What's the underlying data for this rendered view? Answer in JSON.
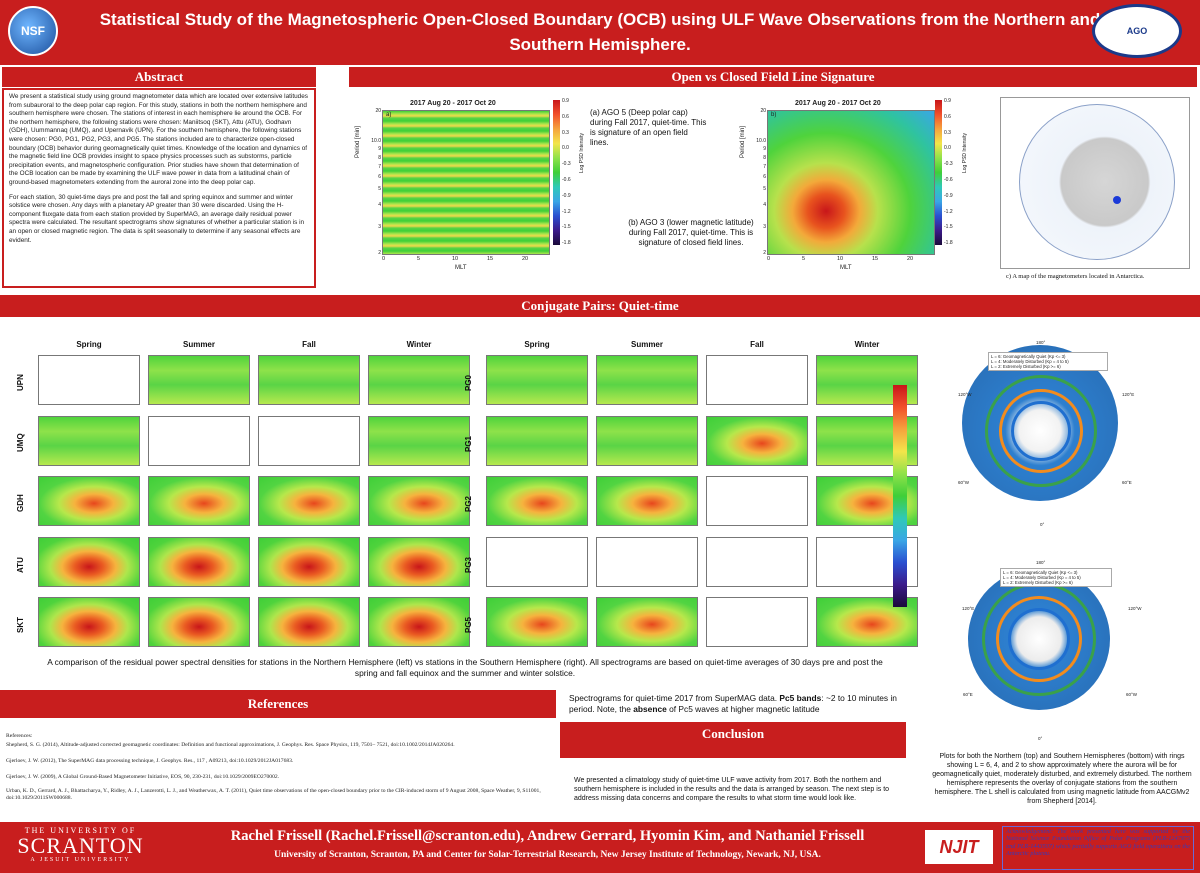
{
  "header": {
    "title": "Statistical Study of the Magnetospheric Open-Closed Boundary (OCB) using ULF Wave Observations from the Northern and Southern Hemisphere.",
    "nsf_logo": "NSF",
    "ago_logo": "AGO"
  },
  "abstract": {
    "heading": "Abstract",
    "p1": "We present a statistical study using ground magnetometer data which are located over extensive latitudes from subauroral to the deep polar cap region.  For this study, stations in both the northern hemisphere and southern hemisphere were chosen. The stations of interest in each hemisphere lie around the OCB. For the northern hemisphere, the following stations were chosen: Maniitsoq (SKT), Attu (ATU), Godhavn (GDH), Uummannaq (UMQ), and Upernavik (UPN). For the southern hemisphere, the following stations were chosen: PG0, PG1, PG2, PG3, and PG5. The stations included are to characterize open-closed boundary (OCB) behavior during geomagnetically quiet times. Knowledge of the location and dynamics of the magnetic field line OCB provides insight to space physics processes such as substorms, particle precipitation events, and magnetospheric configuration. Prior studies have shown that determination of the OCB location can be made by examining the ULF wave power in data from a latitudinal chain of ground-based magnetometers extending from the auroral zone into the deep polar cap.",
    "p2": "For each station, 30 quiet-time days pre and post the fall and spring equinox and summer and winter solstice were chosen. Any days with a planetary AP greater than 30 were discarded. Using the H- component fluxgate data from each station provided by SuperMAG, an average daily residual power spectra were calculated. The resultant spectrograms show signatures of whether a particular station is in an open or closed magnetic region. The data is split seasonally to determine if any seasonal effects are evident."
  },
  "signature": {
    "heading": "Open vs Closed Field Line Signature",
    "plot_a": {
      "title": "2017 Aug 20 - 2017 Oct 20",
      "panel": "a)",
      "xlabel": "MLT",
      "ylabel": "Period [min]",
      "cbar_label": "Log PSD Intensity"
    },
    "plot_b": {
      "title": "2017 Aug 20 - 2017 Oct 20",
      "panel": "b)",
      "xlabel": "MLT",
      "ylabel": "Period [min]",
      "cbar_label": "Log PSD Intensity"
    },
    "cbar_ticks": [
      "0.9",
      "0.6",
      "0.3",
      "0.0",
      "-0.3",
      "-0.6",
      "-0.9",
      "-1.2",
      "-1.5",
      "-1.8"
    ],
    "cbar_ticks_b": [
      "0.9",
      "0.6",
      "0.3",
      "0.0",
      "-0.3",
      "-0.6",
      "-0.9",
      "-1.2",
      "-1.5",
      "-1.8"
    ],
    "yticks": [
      "20",
      "10.0",
      "9",
      "8",
      "7",
      "6",
      "5",
      "4",
      "3",
      "2"
    ],
    "xticks": [
      "0",
      "5",
      "10",
      "15",
      "20"
    ],
    "note_a": "(a) AGO 5 (Deep polar cap) during Fall 2017, quiet-time. This is signature of an open field lines.",
    "note_b": "(b) AGO 3 (lower magnetic latitude) during Fall 2017, quiet-time. This is signature of closed field lines.",
    "map_caption": "c) A map of the magnetometers located in Antarctica."
  },
  "conjugate": {
    "heading": "Conjugate Pairs: Quiet-time",
    "seasons": [
      "Spring",
      "Summer",
      "Fall",
      "Winter"
    ],
    "north_stations": [
      "UPN",
      "UMQ",
      "GDH",
      "ATU",
      "SKT"
    ],
    "south_stations": [
      "PG0",
      "PG1",
      "PG2",
      "PG3",
      "PG5"
    ],
    "caption": "A comparison of the residual power spectral densities for stations in the Northern Hemisphere (left) vs stations in the Southern Hemisphere (right). All spectrograms are based on quiet-time averages of 30 days pre and post the spring and fall equinox and the summer and winter solstice.",
    "maps_caption": "Plots for both the Northern (top) and Southern Hemispheres (bottom) with rings showing L = 6, 4, and 2 to show approximately where the aurora will be for geomagnetically quiet, moderately disturbed, and extremely disturbed. The northern hemisphere represents the overlay of conjugate stations from the southern hemisphere. The L shell is calculated from using magnetic latitude from AACGMv2 from Shepherd [2014].",
    "map_north_legend": [
      "L = 6: Geomagnetically Quiet (Kp <= 3)",
      "L = 4: Moderately Disturbed (Kp = 4 to 5)",
      "L = 2: Extremely Disturbed (Kp >= 6)"
    ],
    "map_south_legend": [
      "L = 6: Geomagnetically Quiet (Kp <= 3)",
      "L = 4: Moderately Disturbed (Kp = 4 to 5)",
      "L = 2: Extremely Disturbed (Kp >= 6)"
    ],
    "map_labels_north": {
      "top": "180°",
      "left": "120°W",
      "right": "120°E",
      "bl": "60°W",
      "br": "60°E",
      "bottom": "0°"
    },
    "map_labels_south": {
      "top": "180°",
      "left": "120°E",
      "right": "120°W",
      "bl": "60°E",
      "br": "60°W",
      "bottom": "0°"
    }
  },
  "pc5_note": {
    "prefix": "Spectrograms for quiet-time 2017 from SuperMAG data. ",
    "bold1": "Pc5 bands",
    "mid": ": ~2 to 10 minutes in period. Note, the ",
    "bold2": "absence",
    "suffix": " of Pc5 waves at higher magnetic latitude"
  },
  "references": {
    "heading": "References",
    "label": "References:",
    "items": [
      "Shepherd, S. G. (2014), Altitude-adjusted corrected geomagnetic coordinates: Definition and functional approximations, J. Geophys. Res. Space Physics, 119, 7501– 7521, doi:10.1002/2014JA020264.",
      "Gjerloev, J. W. (2012), The SuperMAG data processing technique, J. Geophys. Res., 117 , A09213, doi:10.1029/2012JA017683.",
      "Gjerloev, J. W. (2009), A Global Ground-Based Magnetometer Initiative, EOS, 90, 230-231, doi:10.1029/2009EO270002.",
      "Urban, K. D., Gerrard, A. J., Bhattacharya, Y., Ridley, A. J., Lanzerotti, L. J., and Weatherwax, A. T. (2011), Quiet time observations of the open-closed boundary prior to the CIR-induced storm of 9 August 2008, Space Weather, 9, S11001, doi:10.1029/2011SW000688."
    ]
  },
  "conclusion": {
    "heading": "Conclusion",
    "text": "We presented a climatology study of quiet-time ULF wave activity from 2017. Both the northern and southern hemisphere is included in the results and the data is arranged by season. The next step is to address missing data concerns and compare the results to what storm time would look like."
  },
  "footer": {
    "university_line1": "THE UNIVERSITY OF",
    "university_line2": "SCRANTON",
    "university_line3": "A JESUIT UNIVERSITY",
    "authors": "Rachel Frissell (Rachel.Frissell@scranton.edu), Andrew Gerrard,  Hyomin Kim, and Nathaniel Frissell",
    "affiliations": "University of Scranton, Scranton, PA and Center for Solar-Terrestrial Research, New Jersey Institute of Technology, Newark, NJ, USA.",
    "njit": "NJIT",
    "ack": "Acknowledgement: The work presented here was supported by the National Science Foundation Office of Polar Programs (PLR-1247975 and PLR-1443507) which partially supports AGO field operations on the Antarctic plateau."
  },
  "grid": {
    "north_types": [
      [
        "white",
        "qgreen",
        "qgreen",
        "qgreen"
      ],
      [
        "qgreen",
        "white",
        "white",
        "qgreen"
      ],
      [
        "rlow",
        "rlow",
        "rlow",
        "rlow"
      ],
      [
        "rhigh",
        "rhigh",
        "rhigh",
        "rhigh"
      ],
      [
        "rhigh",
        "rhigh",
        "rhigh",
        "rhigh"
      ]
    ],
    "south_types": [
      [
        "qgreen",
        "qgreen",
        "white",
        "qgreen"
      ],
      [
        "qgreen",
        "qgreen",
        "rlow",
        "qgreen"
      ],
      [
        "rlow",
        "rlow",
        "white",
        "rlow"
      ],
      [
        "white",
        "white",
        "white",
        "white"
      ],
      [
        "rlow",
        "rlow",
        "white",
        "rlow"
      ]
    ]
  },
  "colors": {
    "brand_red": "#c81e1e"
  }
}
